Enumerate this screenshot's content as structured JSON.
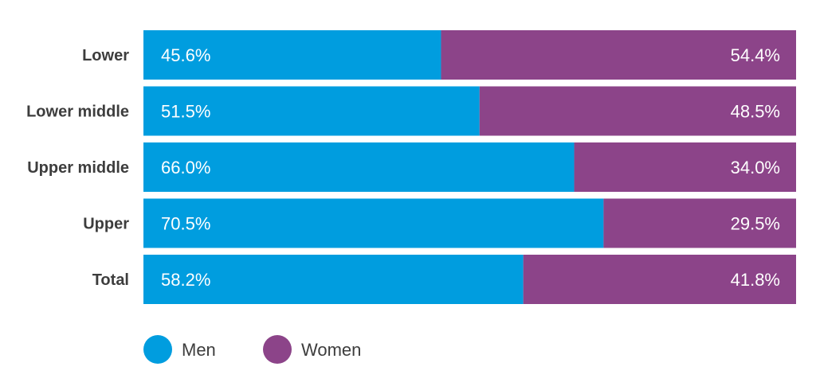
{
  "chart_data": {
    "type": "bar",
    "orientation": "horizontal",
    "stacked": true,
    "categories": [
      "Lower",
      "Lower middle",
      "Upper middle",
      "Upper",
      "Total"
    ],
    "series": [
      {
        "name": "Men",
        "values": [
          45.6,
          51.5,
          66.0,
          70.5,
          58.2
        ],
        "labels": [
          "45.6%",
          "51.5%",
          "66.0%",
          "70.5%",
          "58.2%"
        ],
        "color": "#009ddf"
      },
      {
        "name": "Women",
        "values": [
          54.4,
          48.5,
          34.0,
          29.5,
          41.8
        ],
        "labels": [
          "54.4%",
          "48.5%",
          "34.0%",
          "29.5%",
          "41.8%"
        ],
        "color": "#8c4489"
      }
    ],
    "xlim": [
      0,
      100
    ],
    "grid": false,
    "legend": "bottom-left",
    "title": "",
    "xlabel": "",
    "ylabel": ""
  }
}
